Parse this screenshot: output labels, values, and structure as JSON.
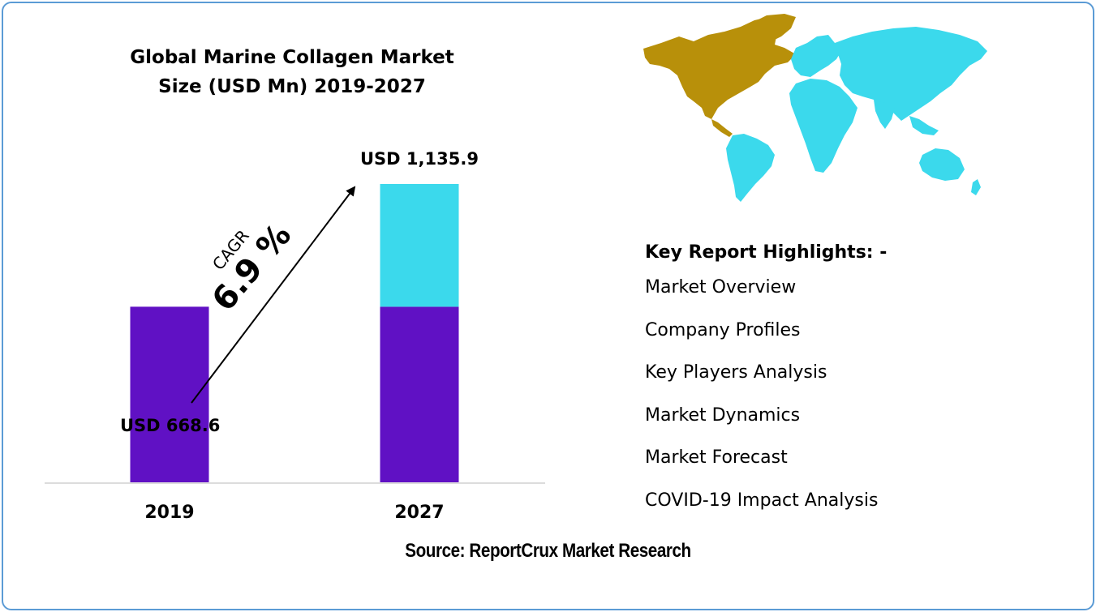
{
  "title_lines": [
    "Global Marine Collagen Market",
    "Size (USD Mn) 2019-2027"
  ],
  "chart_data": {
    "type": "bar",
    "title": "Global Marine Collagen Market Size (USD Mn) 2019-2027",
    "categories": [
      "2019",
      "2027"
    ],
    "values": [
      668.6,
      1135.9
    ],
    "value_labels": [
      "USD 668.6",
      "USD 1,135.9"
    ],
    "series": [
      {
        "values": [
          668.6,
          668.6
        ],
        "color": "#6011c4"
      },
      {
        "values": [
          0,
          467.3
        ],
        "color": "#3bd9ec"
      }
    ],
    "ylim": [
      0,
      1135.9
    ],
    "grid": false,
    "legend": "none"
  },
  "cagr": {
    "label": "CAGR",
    "value": "6.9 %"
  },
  "highlights": {
    "title": "Key Report Highlights: -",
    "items": [
      "Market Overview",
      "Company Profiles",
      "Key Players Analysis",
      "Market Dynamics",
      "Market Forecast",
      "COVID-19 Impact Analysis"
    ]
  },
  "source": "Source: ReportCrux Market Research",
  "colors": {
    "frame": "#5b9bd5",
    "base_bar": "#6011c4",
    "growth_bar": "#3bd9ec",
    "map_north_america": "#b8900a",
    "map_rest": "#3bd9ec"
  },
  "icons": {
    "map": "world-map-icon",
    "arrow": "trend-arrow-icon"
  }
}
